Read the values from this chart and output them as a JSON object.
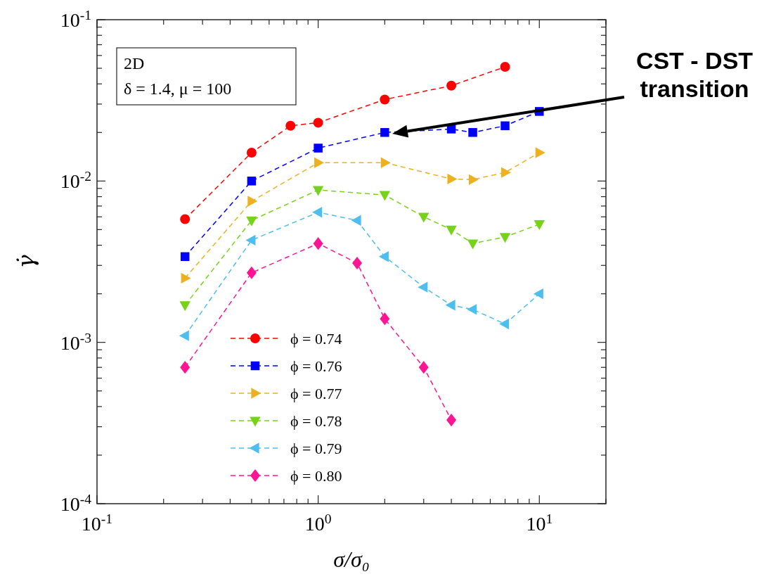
{
  "chart_data": {
    "type": "line",
    "xlabel": "σ/σ₀",
    "ylabel": "γ̇",
    "log": "xy",
    "xlim": [
      0.1,
      20
    ],
    "ylim": [
      0.0001,
      0.1
    ],
    "xticks": [
      {
        "value": 0.1,
        "label": "10$^{-1}$"
      },
      {
        "value": 0.2,
        "label": null
      },
      {
        "value": 0.3,
        "label": null
      },
      {
        "value": 0.4,
        "label": null
      },
      {
        "value": 0.5,
        "label": null
      },
      {
        "value": 0.6,
        "label": null
      },
      {
        "value": 0.7,
        "label": null
      },
      {
        "value": 0.8,
        "label": null
      },
      {
        "value": 0.9,
        "label": null
      },
      {
        "value": 1,
        "label": "10$^{0}$"
      },
      {
        "value": 2,
        "label": null
      },
      {
        "value": 3,
        "label": null
      },
      {
        "value": 4,
        "label": null
      },
      {
        "value": 5,
        "label": null
      },
      {
        "value": 6,
        "label": null
      },
      {
        "value": 7,
        "label": null
      },
      {
        "value": 8,
        "label": null
      },
      {
        "value": 9,
        "label": null
      },
      {
        "value": 10,
        "label": "10$^{1}$"
      },
      {
        "value": 20,
        "label": null
      }
    ],
    "yticks": [
      {
        "value": 0.0001,
        "label": "10$^{-4}$"
      },
      {
        "value": 0.0002,
        "label": null
      },
      {
        "value": 0.0003,
        "label": null
      },
      {
        "value": 0.0004,
        "label": null
      },
      {
        "value": 0.0005,
        "label": null
      },
      {
        "value": 0.0006,
        "label": null
      },
      {
        "value": 0.0007,
        "label": null
      },
      {
        "value": 0.0008,
        "label": null
      },
      {
        "value": 0.0009,
        "label": null
      },
      {
        "value": 0.001,
        "label": "10$^{-3}$"
      },
      {
        "value": 0.002,
        "label": null
      },
      {
        "value": 0.003,
        "label": null
      },
      {
        "value": 0.004,
        "label": null
      },
      {
        "value": 0.005,
        "label": null
      },
      {
        "value": 0.006,
        "label": null
      },
      {
        "value": 0.007,
        "label": null
      },
      {
        "value": 0.008,
        "label": null
      },
      {
        "value": 0.009,
        "label": null
      },
      {
        "value": 0.01,
        "label": "10$^{-2}$"
      },
      {
        "value": 0.02,
        "label": null
      },
      {
        "value": 0.03,
        "label": null
      },
      {
        "value": 0.04,
        "label": null
      },
      {
        "value": 0.05,
        "label": null
      },
      {
        "value": 0.06,
        "label": null
      },
      {
        "value": 0.07,
        "label": null
      },
      {
        "value": 0.08,
        "label": null
      },
      {
        "value": 0.09,
        "label": null
      },
      {
        "value": 0.1,
        "label": "10$^{-1}$"
      }
    ],
    "grid": false,
    "legend": "bottom left",
    "line_style": "dashed",
    "series": [
      {
        "name": "ϕ = 0.74",
        "color": "#ff0000",
        "marker": "circle",
        "x": [
          0.25,
          0.5,
          0.75,
          1,
          2,
          4,
          7
        ],
        "values": [
          0.0058,
          0.015,
          0.022,
          0.023,
          0.032,
          0.039,
          0.051
        ]
      },
      {
        "name": "ϕ = 0.76",
        "color": "#0000ff",
        "marker": "square",
        "x": [
          0.25,
          0.5,
          1,
          2,
          4,
          5,
          7,
          10
        ],
        "values": [
          0.0034,
          0.01,
          0.016,
          0.02,
          0.021,
          0.02,
          0.022,
          0.027
        ]
      },
      {
        "name": "ϕ = 0.77",
        "color": "#edb120",
        "marker": "triangle",
        "x": [
          0.25,
          0.5,
          1,
          2,
          4,
          5,
          7,
          10
        ],
        "values": [
          0.0025,
          0.0075,
          0.013,
          0.013,
          0.0103,
          0.0102,
          0.0113,
          0.015
        ]
      },
      {
        "name": "ϕ = 0.78",
        "color": "#77d21a",
        "marker": "triangle",
        "x": [
          0.25,
          0.5,
          1,
          2,
          3,
          4,
          5,
          7,
          10
        ],
        "values": [
          0.0017,
          0.0057,
          0.0088,
          0.0082,
          0.006,
          0.005,
          0.0041,
          0.0045,
          0.0054
        ]
      },
      {
        "name": "ϕ = 0.79",
        "color": "#4dbeee",
        "marker": "triangle",
        "x": [
          0.25,
          0.5,
          1,
          1.5,
          2,
          3,
          4,
          5,
          7,
          10
        ],
        "values": [
          0.0011,
          0.0043,
          0.0064,
          0.0057,
          0.0034,
          0.0022,
          0.0017,
          0.0016,
          0.0013,
          0.002
        ]
      },
      {
        "name": "ϕ = 0.80",
        "color": "#ff1493",
        "marker": "diamond",
        "x": [
          0.25,
          0.5,
          1,
          1.5,
          2,
          3,
          4
        ],
        "values": [
          0.0007,
          0.0027,
          0.0041,
          0.0031,
          0.0014,
          0.0007,
          0.00033
        ]
      }
    ],
    "annotations": [
      "2D",
      "δ = 1.4, μ = 100",
      "CST - DST transition"
    ]
  }
}
